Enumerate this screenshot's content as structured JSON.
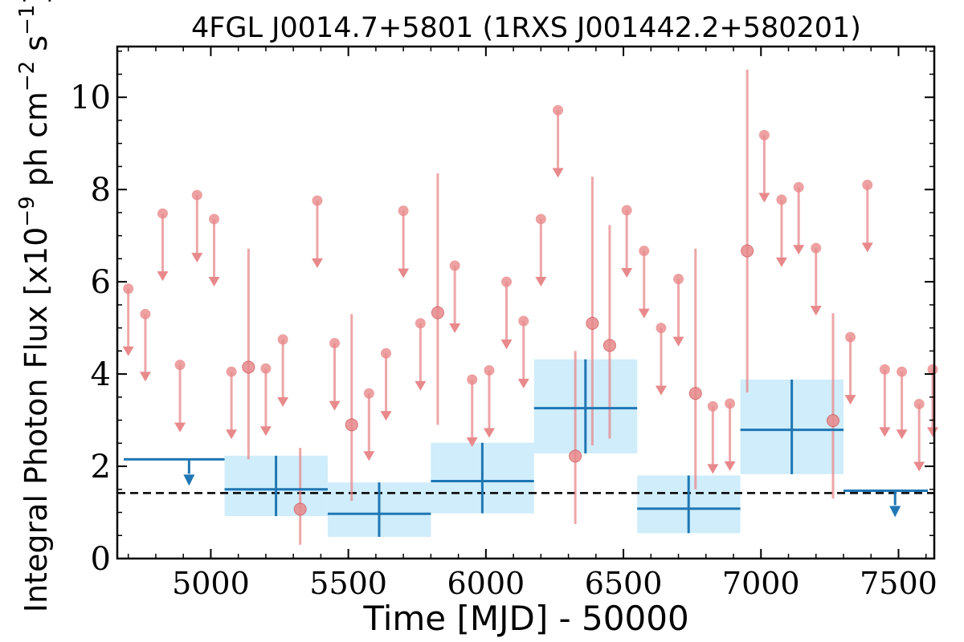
{
  "chart_data": {
    "type": "scatter",
    "title": "4FGL J0014.7+5801 (1RXS J001442.2+580201)",
    "xlabel": "Time [MJD] - 50000",
    "ylabel": "Integral Photon Flux [x10",
    "ylabel_exp": "−9",
    "ylabel_units": " ph cm",
    "ylabel_exp2": "−2",
    "ylabel_units2": " s",
    "ylabel_exp3": "−1",
    "ylabel_close": "]",
    "xlim": [
      4660,
      7630
    ],
    "ylim": [
      0,
      11.1
    ],
    "xticks": [
      5000,
      5500,
      6000,
      6500,
      7000,
      7500
    ],
    "yticks": [
      0,
      2,
      4,
      6,
      8,
      10
    ],
    "xtick_labels": [
      "5000",
      "5500",
      "6000",
      "6500",
      "7000",
      "7500"
    ],
    "ytick_labels": [
      "0",
      "2",
      "4",
      "6",
      "8",
      "10"
    ],
    "reference_level": 1.42,
    "colors": {
      "fine_bins": "#e8898b",
      "wide_bins": "#1f77b4",
      "wide_bins_fill": "#cfedfb",
      "reference_line": "#000000"
    },
    "fine_bins_upper_limits": [
      {
        "x": 4700,
        "y": 5.85
      },
      {
        "x": 4762,
        "y": 5.3
      },
      {
        "x": 4825,
        "y": 7.48
      },
      {
        "x": 4888,
        "y": 4.2
      },
      {
        "x": 4950,
        "y": 7.88
      },
      {
        "x": 5012,
        "y": 7.36
      },
      {
        "x": 5075,
        "y": 4.05
      },
      {
        "x": 5200,
        "y": 4.12
      },
      {
        "x": 5262,
        "y": 4.75
      },
      {
        "x": 5387,
        "y": 7.76
      },
      {
        "x": 5450,
        "y": 4.67
      },
      {
        "x": 5575,
        "y": 3.58
      },
      {
        "x": 5637,
        "y": 4.45
      },
      {
        "x": 5700,
        "y": 7.54
      },
      {
        "x": 5762,
        "y": 5.1
      },
      {
        "x": 5887,
        "y": 6.35
      },
      {
        "x": 5950,
        "y": 3.88
      },
      {
        "x": 6012,
        "y": 4.08
      },
      {
        "x": 6075,
        "y": 6.0
      },
      {
        "x": 6137,
        "y": 5.15
      },
      {
        "x": 6200,
        "y": 7.36
      },
      {
        "x": 6262,
        "y": 9.72
      },
      {
        "x": 6512,
        "y": 7.55
      },
      {
        "x": 6575,
        "y": 6.67
      },
      {
        "x": 6637,
        "y": 5.0
      },
      {
        "x": 6700,
        "y": 6.06
      },
      {
        "x": 6825,
        "y": 3.3
      },
      {
        "x": 6887,
        "y": 3.36
      },
      {
        "x": 7012,
        "y": 9.18
      },
      {
        "x": 7075,
        "y": 7.78
      },
      {
        "x": 7137,
        "y": 8.05
      },
      {
        "x": 7200,
        "y": 6.73
      },
      {
        "x": 7325,
        "y": 4.8
      },
      {
        "x": 7387,
        "y": 8.1
      },
      {
        "x": 7450,
        "y": 4.1
      },
      {
        "x": 7512,
        "y": 4.05
      },
      {
        "x": 7575,
        "y": 3.35
      },
      {
        "x": 7637,
        "y": 4.1
      }
    ],
    "fine_bins_detections": [
      {
        "x": 5137,
        "y": 4.15,
        "ylo": 2.15,
        "yhi": 6.72
      },
      {
        "x": 5325,
        "y": 1.07,
        "ylo": 0.3,
        "yhi": 2.4
      },
      {
        "x": 5512,
        "y": 2.9,
        "ylo": 1.25,
        "yhi": 5.3
      },
      {
        "x": 5825,
        "y": 5.33,
        "ylo": 2.9,
        "yhi": 8.35
      },
      {
        "x": 6325,
        "y": 2.22,
        "ylo": 0.75,
        "yhi": 4.5
      },
      {
        "x": 6387,
        "y": 5.1,
        "ylo": 2.45,
        "yhi": 8.28
      },
      {
        "x": 6450,
        "y": 4.62,
        "ylo": 2.6,
        "yhi": 7.23
      },
      {
        "x": 6762,
        "y": 3.58,
        "ylo": 1.5,
        "yhi": 6.72
      },
      {
        "x": 6950,
        "y": 6.67,
        "ylo": 3.6,
        "yhi": 10.6
      },
      {
        "x": 7262,
        "y": 2.99,
        "ylo": 1.3,
        "yhi": 5.32
      }
    ],
    "wide_bins": [
      {
        "x0": 4675,
        "x1": 5050,
        "y": 2.15,
        "upper_limit": true
      },
      {
        "x0": 5050,
        "x1": 5425,
        "x": 5237,
        "y": 1.5,
        "ylo": 0.92,
        "yhi": 2.23,
        "upper_limit": false
      },
      {
        "x0": 5425,
        "x1": 5800,
        "x": 5612,
        "y": 0.97,
        "ylo": 0.47,
        "yhi": 1.65,
        "upper_limit": false
      },
      {
        "x0": 5800,
        "x1": 6175,
        "x": 5987,
        "y": 1.68,
        "ylo": 0.98,
        "yhi": 2.51,
        "upper_limit": false
      },
      {
        "x0": 6175,
        "x1": 6550,
        "x": 6362,
        "y": 3.26,
        "ylo": 2.28,
        "yhi": 4.32,
        "upper_limit": false
      },
      {
        "x0": 6550,
        "x1": 6925,
        "x": 6737,
        "y": 1.08,
        "ylo": 0.55,
        "yhi": 1.8,
        "upper_limit": false
      },
      {
        "x0": 6925,
        "x1": 7300,
        "x": 7112,
        "y": 2.79,
        "ylo": 1.83,
        "yhi": 3.88,
        "upper_limit": false
      },
      {
        "x0": 7300,
        "x1": 7675,
        "y": 1.47,
        "upper_limit": true
      }
    ],
    "grid": false,
    "legend": "none"
  }
}
